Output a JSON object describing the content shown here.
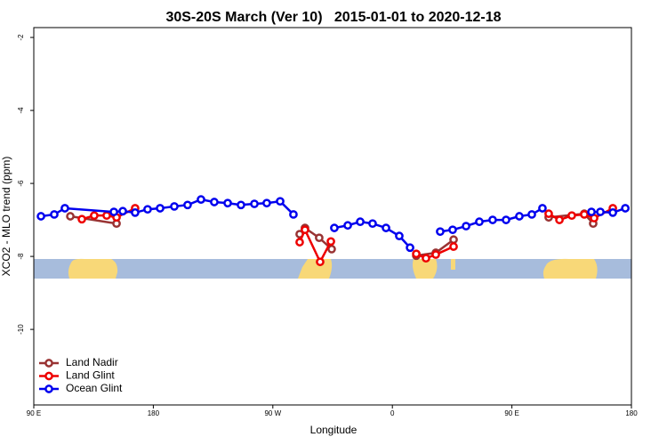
{
  "chart_data": {
    "type": "line",
    "title": "30S-20S March (Ver 10)   2015-01-01 to 2020-12-18",
    "x_label": "Longitude",
    "y_label": "XCO2 - MLO trend (ppm)",
    "xlim": [
      90,
      540
    ],
    "xticks": [
      {
        "value": 90,
        "label": "90 E"
      },
      180,
      {
        "value": 270,
        "label": "90 W"
      },
      {
        "value": 360,
        "label": "0"
      },
      {
        "value": 450,
        "label": "90 E"
      },
      {
        "value": 540,
        "label": "180"
      }
    ],
    "ylim": [
      -12.07,
      -1.73
    ],
    "yticks": [
      -2,
      -4,
      -6,
      -8,
      -10
    ],
    "legend": "bottom-left",
    "series": [
      {
        "name": "Land Nadir",
        "color": "#993333",
        "x": [
          117.5,
          152.3,
          null,
          290.2,
          294.2,
          304.9,
          314.3,
          null,
          378.0,
          392.7,
          406.1,
          null,
          477.7,
          504.5,
          511.2
        ],
        "values": [
          -6.9,
          -7.1,
          null,
          -7.39,
          -7.22,
          -7.49,
          -7.8,
          null,
          -7.98,
          -7.9,
          -7.54,
          null,
          -6.93,
          -6.83,
          -7.1
        ]
      },
      {
        "name": "Land Glint",
        "color": "#ee0000",
        "x": [
          126.2,
          135.5,
          144.9,
          152.3,
          166.3,
          null,
          290.2,
          294.2,
          305.6,
          313.7,
          null,
          378.0,
          385.3,
          392.7,
          406.1,
          null,
          477.7,
          485.8,
          495.1,
          504.5,
          511.9,
          526.0
        ],
        "values": [
          -6.98,
          -6.88,
          -6.88,
          -6.93,
          -6.68,
          null,
          -7.61,
          -7.27,
          -8.15,
          -7.59,
          null,
          -7.93,
          -8.05,
          -7.95,
          -7.73,
          null,
          -6.83,
          -7.0,
          -6.88,
          -6.85,
          -6.95,
          -6.68
        ]
      },
      {
        "name": "Ocean Glint",
        "color": "#0000ee",
        "x": [
          95.4,
          105.4,
          113.4,
          150.3,
          157.0,
          166.3,
          175.7,
          185.1,
          195.8,
          205.8,
          215.9,
          225.9,
          236.0,
          246.0,
          256.1,
          265.4,
          275.5,
          285.5,
          null,
          316.3,
          326.4,
          335.8,
          345.1,
          355.2,
          365.2,
          373.3,
          null,
          396.0,
          405.4,
          415.5,
          425.5,
          435.5,
          445.6,
          455.6,
          465.0,
          473.0,
          null,
          509.9,
          516.6,
          526.0,
          535.4
        ],
        "values": [
          -6.9,
          -6.85,
          -6.68,
          -6.78,
          -6.76,
          -6.8,
          -6.71,
          -6.68,
          -6.63,
          -6.59,
          -6.44,
          -6.51,
          -6.54,
          -6.59,
          -6.56,
          -6.54,
          -6.49,
          -6.85,
          null,
          -7.22,
          -7.15,
          -7.05,
          -7.1,
          -7.22,
          -7.44,
          -7.76,
          null,
          -7.32,
          -7.27,
          -7.17,
          -7.05,
          -7.0,
          -7.0,
          -6.9,
          -6.85,
          -6.68,
          null,
          -6.78,
          -6.78,
          -6.8,
          -6.68
        ]
      }
    ]
  }
}
